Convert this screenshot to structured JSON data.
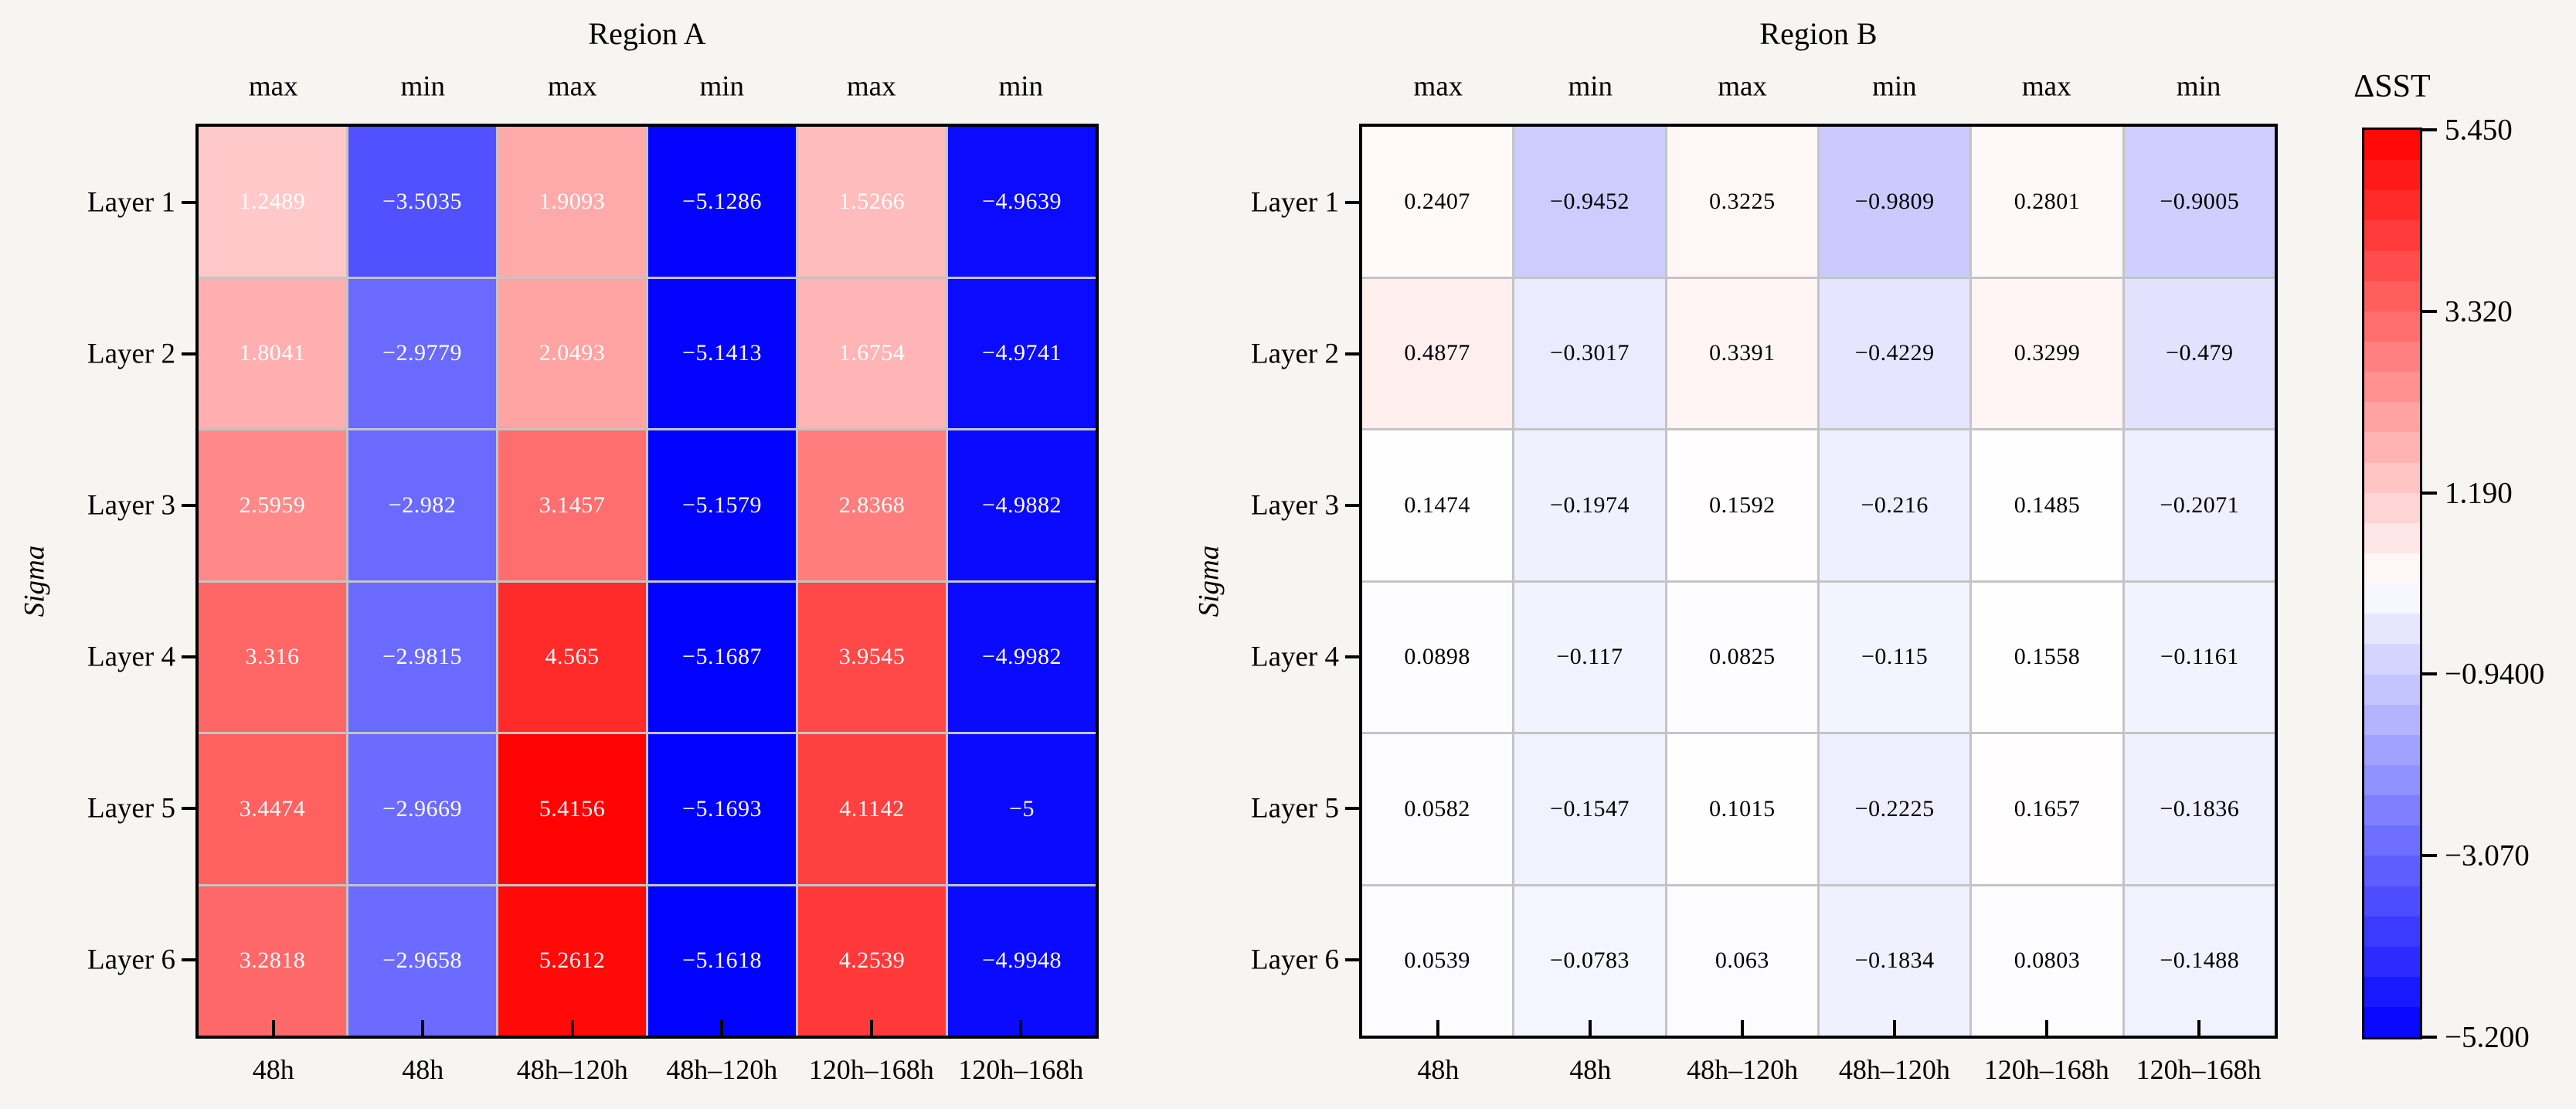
{
  "style": {
    "background": "#f7f5f2",
    "gridline_color": "#c4c4c4",
    "border_color": "#000000",
    "negative_color": "#0000ff",
    "center_color": "#ffffff",
    "positive_color": "#ff0000"
  },
  "colorbar": {
    "title": "ΔSST",
    "tick_labels": [
      "5.450",
      "3.320",
      "1.190",
      "−0.9400",
      "−3.070",
      "−5.200"
    ],
    "tick_values": [
      5.45,
      3.32,
      1.19,
      -0.94,
      -3.07,
      -5.2
    ],
    "vmin": -5.2,
    "vmax": 5.45,
    "levels": 30
  },
  "chart_data": [
    {
      "type": "heatmap",
      "title": "Region A",
      "ylabel": "Sigma",
      "row_labels": [
        "Layer 1",
        "Layer 2",
        "Layer 3",
        "Layer 4",
        "Layer 5",
        "Layer 6"
      ],
      "col_top_labels": [
        "max",
        "min",
        "max",
        "min",
        "max",
        "min"
      ],
      "col_bottom_labels": [
        "48h",
        "48h",
        "48h–120h",
        "48h–120h",
        "120h–168h",
        "120h–168h"
      ],
      "values": [
        [
          1.2489,
          -3.5035,
          1.9093,
          -5.1286,
          1.5266,
          -4.9639
        ],
        [
          1.8041,
          -2.9779,
          2.0493,
          -5.1413,
          1.6754,
          -4.9741
        ],
        [
          2.5959,
          -2.982,
          3.1457,
          -5.1579,
          2.8368,
          -4.9882
        ],
        [
          3.316,
          -2.9815,
          4.565,
          -5.1687,
          3.9545,
          -4.9982
        ],
        [
          3.4474,
          -2.9669,
          5.4156,
          -5.1693,
          4.1142,
          -5
        ],
        [
          3.2818,
          -2.9658,
          5.2612,
          -5.1618,
          4.2539,
          -4.9948
        ]
      ],
      "value_text_color": "#ffffff"
    },
    {
      "type": "heatmap",
      "title": "Region B",
      "ylabel": "Sigma",
      "row_labels": [
        "Layer 1",
        "Layer 2",
        "Layer 3",
        "Layer 4",
        "Layer 5",
        "Layer 6"
      ],
      "col_top_labels": [
        "max",
        "min",
        "max",
        "min",
        "max",
        "min"
      ],
      "col_bottom_labels": [
        "48h",
        "48h",
        "48h–120h",
        "48h–120h",
        "120h–168h",
        "120h–168h"
      ],
      "values": [
        [
          0.2407,
          -0.9452,
          0.3225,
          -0.9809,
          0.2801,
          -0.9005
        ],
        [
          0.4877,
          -0.3017,
          0.3391,
          -0.4229,
          0.3299,
          -0.479
        ],
        [
          0.1474,
          -0.1974,
          0.1592,
          -0.216,
          0.1485,
          -0.2071
        ],
        [
          0.0898,
          -0.117,
          0.0825,
          -0.115,
          0.1558,
          -0.1161
        ],
        [
          0.0582,
          -0.1547,
          0.1015,
          -0.2225,
          0.1657,
          -0.1836
        ],
        [
          0.0539,
          -0.0783,
          0.063,
          -0.1834,
          0.0803,
          -0.1488
        ]
      ],
      "value_text_color": "#000000"
    }
  ]
}
